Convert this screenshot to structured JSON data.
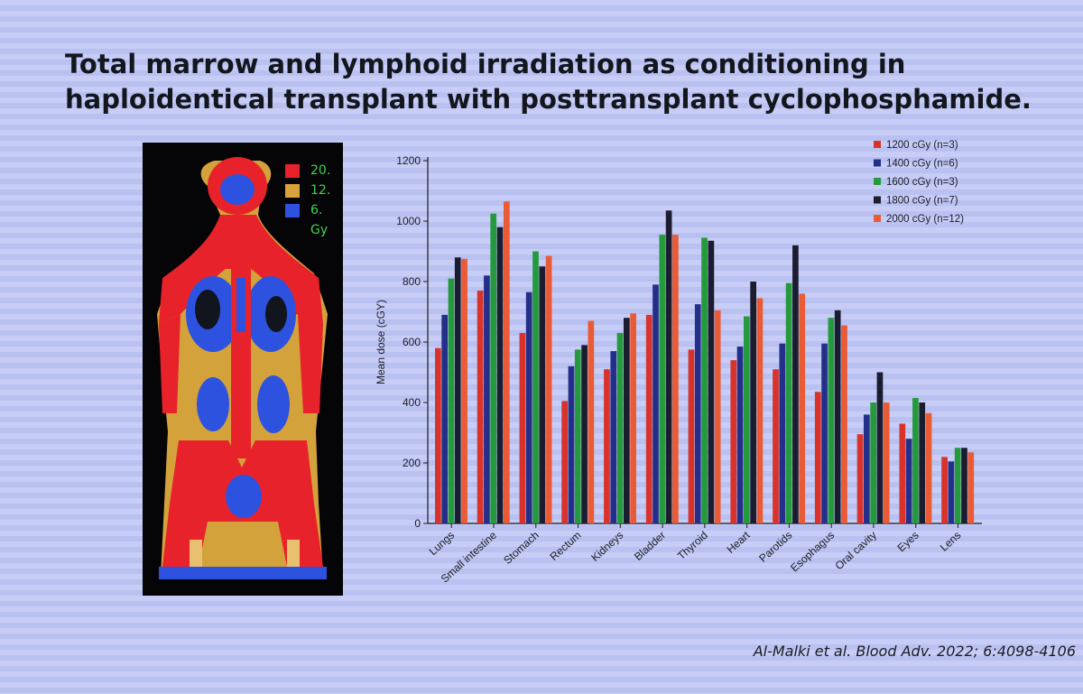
{
  "slide": {
    "title": "Total marrow and lymphoid irradiation as conditioning in haploidentical transplant with posttransplant cyclophosphamide.",
    "citation": "Al-Malki et al. Blood Adv. 2022; 6:4098-4106"
  },
  "dose_map": {
    "legend": [
      {
        "label": "20.",
        "color": "#e8222a"
      },
      {
        "label": "12.",
        "color": "#d9a23a"
      },
      {
        "label": "6.",
        "color": "#2e52e0"
      }
    ],
    "unit": "Gy"
  },
  "colors": {
    "axis": "#1a1a1a",
    "text": "#1c1c24"
  },
  "chart_data": {
    "type": "bar",
    "title": "",
    "xlabel": "",
    "ylabel": "Mean dose (cGY)",
    "ylim": [
      0,
      1200
    ],
    "yticks": [
      0,
      200,
      400,
      600,
      800,
      1000,
      1200
    ],
    "grid": false,
    "legend_position": "top-right",
    "categories": [
      "Lungs",
      "Small intestine",
      "Stomach",
      "Rectum",
      "Kidneys",
      "Bladder",
      "Thyroid",
      "Heart",
      "Parotids",
      "Esophagus",
      "Oral cavity",
      "Eyes",
      "Lens"
    ],
    "series": [
      {
        "name": "1200 cGy (n=3)",
        "color": "#d8322a",
        "values": [
          580,
          770,
          630,
          405,
          510,
          690,
          575,
          540,
          510,
          435,
          295,
          330,
          220
        ]
      },
      {
        "name": "1400 cGy (n=6)",
        "color": "#242f8a",
        "values": [
          690,
          820,
          765,
          520,
          570,
          790,
          725,
          585,
          595,
          595,
          360,
          280,
          205
        ]
      },
      {
        "name": "1600 cGy (n=3)",
        "color": "#249a3c",
        "values": [
          810,
          1025,
          900,
          575,
          630,
          955,
          945,
          685,
          795,
          680,
          400,
          415,
          250
        ]
      },
      {
        "name": "1800 cGy (n=7)",
        "color": "#1c1c30",
        "values": [
          880,
          980,
          850,
          590,
          680,
          1035,
          935,
          800,
          920,
          705,
          500,
          400,
          250
        ]
      },
      {
        "name": "2000 cGy (n=12)",
        "color": "#ea5a35",
        "values": [
          875,
          1065,
          885,
          670,
          695,
          955,
          705,
          745,
          760,
          655,
          400,
          365,
          235
        ]
      }
    ]
  }
}
